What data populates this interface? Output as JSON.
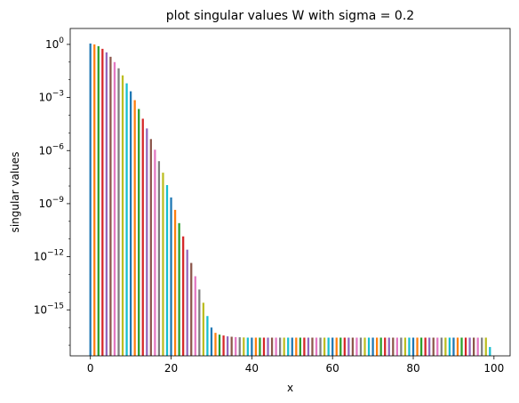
{
  "chart_data": {
    "type": "bar",
    "title": "plot singular values W with sigma = 0.2",
    "xlabel": "x",
    "ylabel": "singular values",
    "yscale": "log",
    "grid": false,
    "xlim": [
      -5,
      104
    ],
    "ylim_log10": [
      -17.6,
      0.9
    ],
    "xticks": [
      0,
      20,
      40,
      60,
      80,
      100
    ],
    "xtick_labels": [
      "0",
      "20",
      "40",
      "60",
      "80",
      "100"
    ],
    "yticks_log10": [
      0,
      -3,
      -6,
      -9,
      -12,
      -15
    ],
    "ytick_labels": [
      {
        "base": "10",
        "exp": "0"
      },
      {
        "base": "10",
        "exp": "−3"
      },
      {
        "base": "10",
        "exp": "−6"
      },
      {
        "base": "10",
        "exp": "−9"
      },
      {
        "base": "10",
        "exp": "−12"
      },
      {
        "base": "10",
        "exp": "−15"
      }
    ],
    "bar_palette": [
      "#1f77b4",
      "#ff7f0e",
      "#2ca02c",
      "#d62728",
      "#9467bd",
      "#8c564b",
      "#e377c2",
      "#7f7f7f",
      "#bcbd22",
      "#17becf"
    ],
    "x": [
      0,
      1,
      2,
      3,
      4,
      5,
      6,
      7,
      8,
      9,
      10,
      11,
      12,
      13,
      14,
      15,
      16,
      17,
      18,
      19,
      20,
      21,
      22,
      23,
      24,
      25,
      26,
      27,
      28,
      29,
      30,
      31,
      32,
      33,
      34,
      35,
      36,
      37,
      38,
      39,
      40,
      41,
      42,
      43,
      44,
      45,
      46,
      47,
      48,
      49,
      50,
      51,
      52,
      53,
      54,
      55,
      56,
      57,
      58,
      59,
      60,
      61,
      62,
      63,
      64,
      65,
      66,
      67,
      68,
      69,
      70,
      71,
      72,
      73,
      74,
      75,
      76,
      77,
      78,
      79,
      80,
      81,
      82,
      83,
      84,
      85,
      86,
      87,
      88,
      89,
      90,
      91,
      92,
      93,
      94,
      95,
      96,
      97,
      98,
      99
    ],
    "values_log10": [
      0.05,
      0.0,
      -0.1,
      -0.25,
      -0.45,
      -0.7,
      -1.0,
      -1.35,
      -1.75,
      -2.2,
      -2.65,
      -3.15,
      -3.65,
      -4.2,
      -4.75,
      -5.35,
      -5.95,
      -6.6,
      -7.25,
      -7.95,
      -8.65,
      -9.35,
      -10.1,
      -10.85,
      -11.6,
      -12.35,
      -13.1,
      -13.85,
      -14.6,
      -15.35,
      -16.0,
      -16.3,
      -16.4,
      -16.45,
      -16.5,
      -16.52,
      -16.54,
      -16.55,
      -16.56,
      -16.57,
      -16.57,
      -16.57,
      -16.57,
      -16.57,
      -16.57,
      -16.57,
      -16.57,
      -16.57,
      -16.57,
      -16.57,
      -16.57,
      -16.57,
      -16.57,
      -16.57,
      -16.57,
      -16.57,
      -16.57,
      -16.57,
      -16.57,
      -16.57,
      -16.57,
      -16.57,
      -16.57,
      -16.57,
      -16.57,
      -16.57,
      -16.57,
      -16.57,
      -16.57,
      -16.57,
      -16.57,
      -16.57,
      -16.57,
      -16.57,
      -16.57,
      -16.57,
      -16.57,
      -16.57,
      -16.57,
      -16.57,
      -16.57,
      -16.57,
      -16.57,
      -16.57,
      -16.57,
      -16.57,
      -16.57,
      -16.57,
      -16.57,
      -16.57,
      -16.57,
      -16.57,
      -16.57,
      -16.57,
      -16.57,
      -16.57,
      -16.57,
      -16.57,
      -16.57,
      -17.1
    ]
  }
}
